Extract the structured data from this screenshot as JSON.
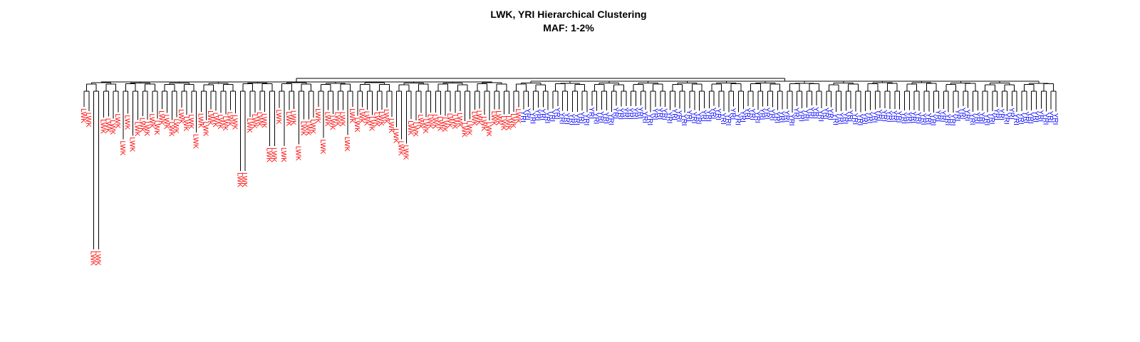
{
  "figure": {
    "title": "LWK, YRI Hierarchical Clustering",
    "subtitle": "MAF: 1-2%"
  },
  "chart_data": {
    "type": "dendrogram",
    "title": "LWK, YRI Hierarchical Clustering",
    "subtitle": "MAF: 1-2%",
    "groups": [
      {
        "label": "LWK",
        "color": "#ff0000",
        "leaf_count": 90
      },
      {
        "label": "YRI",
        "color": "#0000ff",
        "leaf_count": 110
      }
    ],
    "axes_shown": false
  }
}
